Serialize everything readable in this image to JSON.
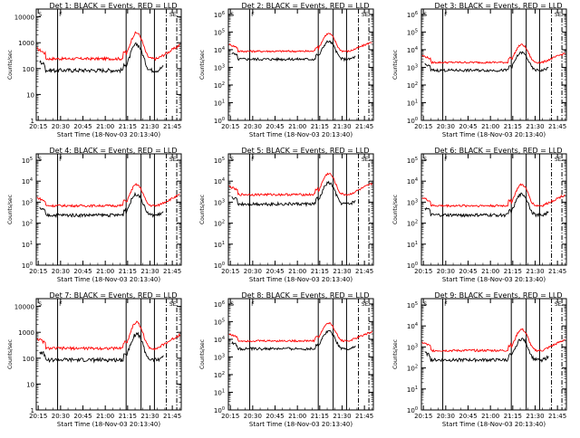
{
  "chart_data": [
    {
      "type": "line",
      "title": "Det 1: BLACK = Events, RED = LLD",
      "xlabel": "Start Time (18-Nov-03 20:13:40)",
      "ylabel": "Counts/sec",
      "x_ticks": [
        "20:15",
        "20:30",
        "20:45",
        "21:00",
        "21:15",
        "21:30",
        "21:45"
      ],
      "y_ticks": [
        "1",
        "10",
        "100",
        "1000",
        "10000"
      ],
      "y_log": true,
      "ylim": [
        1,
        20000
      ],
      "series": [
        {
          "name": "Events",
          "color": "#000000"
        },
        {
          "name": "LLD",
          "color": "#ff0000"
        }
      ]
    },
    {
      "type": "line",
      "title": "Det 2: BLACK = Events, RED = LLD",
      "xlabel": "Start Time (18-Nov-03 20:13:40)",
      "ylabel": "Counts/sec",
      "x_ticks": [
        "20:15",
        "20:30",
        "20:45",
        "21:00",
        "21:15",
        "21:30",
        "21:45"
      ],
      "y_ticks": [
        "10^0",
        "10^1",
        "10^2",
        "10^3",
        "10^4",
        "10^5",
        "10^6"
      ],
      "y_log": true,
      "ylim": [
        1,
        2000000
      ],
      "series": [
        {
          "name": "Events",
          "color": "#000000"
        },
        {
          "name": "LLD",
          "color": "#ff0000"
        }
      ]
    },
    {
      "type": "line",
      "title": "Det 3: BLACK = Events, RED = LLD",
      "xlabel": "Start Time (18-Nov-03 20:13:40)",
      "ylabel": "Counts/sec",
      "x_ticks": [
        "20:15",
        "20:30",
        "20:45",
        "21:00",
        "21:15",
        "21:30",
        "21:45"
      ],
      "y_ticks": [
        "10^0",
        "10^1",
        "10^2",
        "10^3",
        "10^4",
        "10^5",
        "10^6"
      ],
      "y_log": true,
      "ylim": [
        1,
        2000000
      ],
      "series": [
        {
          "name": "Events",
          "color": "#000000"
        },
        {
          "name": "LLD",
          "color": "#ff0000"
        }
      ]
    },
    {
      "type": "line",
      "title": "Det 4: BLACK = Events, RED = LLD",
      "xlabel": "Start Time (18-Nov-03 20:13:40)",
      "ylabel": "Counts/sec",
      "x_ticks": [
        "20:15",
        "20:30",
        "20:45",
        "21:00",
        "21:15",
        "21:30",
        "21:45"
      ],
      "y_ticks": [
        "10^0",
        "10^1",
        "10^2",
        "10^3",
        "10^4",
        "10^5"
      ],
      "y_log": true,
      "ylim": [
        1,
        200000
      ],
      "series": [
        {
          "name": "Events",
          "color": "#000000"
        },
        {
          "name": "LLD",
          "color": "#ff0000"
        }
      ]
    },
    {
      "type": "line",
      "title": "Det 5: BLACK = Events, RED = LLD",
      "xlabel": "Start Time (18-Nov-03 20:13:40)",
      "ylabel": "Counts/sec",
      "x_ticks": [
        "20:15",
        "20:30",
        "20:45",
        "21:00",
        "21:15",
        "21:30",
        "21:45"
      ],
      "y_ticks": [
        "10^0",
        "10^1",
        "10^2",
        "10^3",
        "10^4",
        "10^5"
      ],
      "y_log": true,
      "ylim": [
        1,
        200000
      ],
      "series": [
        {
          "name": "Events",
          "color": "#000000"
        },
        {
          "name": "LLD",
          "color": "#ff0000"
        }
      ]
    },
    {
      "type": "line",
      "title": "Det 6: BLACK = Events, RED = LLD",
      "xlabel": "Start Time (18-Nov-03 20:13:40)",
      "ylabel": "Counts/sec",
      "x_ticks": [
        "20:15",
        "20:30",
        "20:45",
        "21:00",
        "21:15",
        "21:30",
        "21:45"
      ],
      "y_ticks": [
        "10^0",
        "10^1",
        "10^2",
        "10^3",
        "10^4",
        "10^5"
      ],
      "y_log": true,
      "ylim": [
        1,
        200000
      ],
      "series": [
        {
          "name": "Events",
          "color": "#000000"
        },
        {
          "name": "LLD",
          "color": "#ff0000"
        }
      ]
    },
    {
      "type": "line",
      "title": "Det 7: BLACK = Events, RED = LLD",
      "xlabel": "Start Time (18-Nov-03 20:13:40)",
      "ylabel": "Counts/sec",
      "x_ticks": [
        "20:15",
        "20:30",
        "20:45",
        "21:00",
        "21:15",
        "21:30",
        "21:45"
      ],
      "y_ticks": [
        "1",
        "10",
        "100",
        "1000",
        "10000"
      ],
      "y_log": true,
      "ylim": [
        1,
        20000
      ],
      "series": [
        {
          "name": "Events",
          "color": "#000000"
        },
        {
          "name": "LLD",
          "color": "#ff0000"
        }
      ]
    },
    {
      "type": "line",
      "title": "Det 8: BLACK = Events, RED = LLD",
      "xlabel": "Start Time (18-Nov-03 20:13:40)",
      "ylabel": "Counts/sec",
      "x_ticks": [
        "20:15",
        "20:30",
        "20:45",
        "21:00",
        "21:15",
        "21:30",
        "21:45"
      ],
      "y_ticks": [
        "10^0",
        "10^1",
        "10^2",
        "10^3",
        "10^4",
        "10^5",
        "10^6"
      ],
      "y_log": true,
      "ylim": [
        1,
        2000000
      ],
      "series": [
        {
          "name": "Events",
          "color": "#000000"
        },
        {
          "name": "LLD",
          "color": "#ff0000"
        }
      ]
    },
    {
      "type": "line",
      "title": "Det 9: BLACK = Events, RED = LLD",
      "xlabel": "Start Time (18-Nov-03 20:13:40)",
      "ylabel": "Counts/sec",
      "x_ticks": [
        "20:15",
        "20:30",
        "20:45",
        "21:00",
        "21:15",
        "21:30",
        "21:45"
      ],
      "y_ticks": [
        "10^0",
        "10^1",
        "10^2",
        "10^3",
        "10^4",
        "10^5"
      ],
      "y_log": true,
      "ylim": [
        1,
        200000
      ],
      "series": [
        {
          "name": "Events",
          "color": "#000000"
        },
        {
          "name": "LLD",
          "color": "#ff0000"
        }
      ]
    }
  ],
  "colors": {
    "events": "#000000",
    "lld": "#ff0000"
  }
}
